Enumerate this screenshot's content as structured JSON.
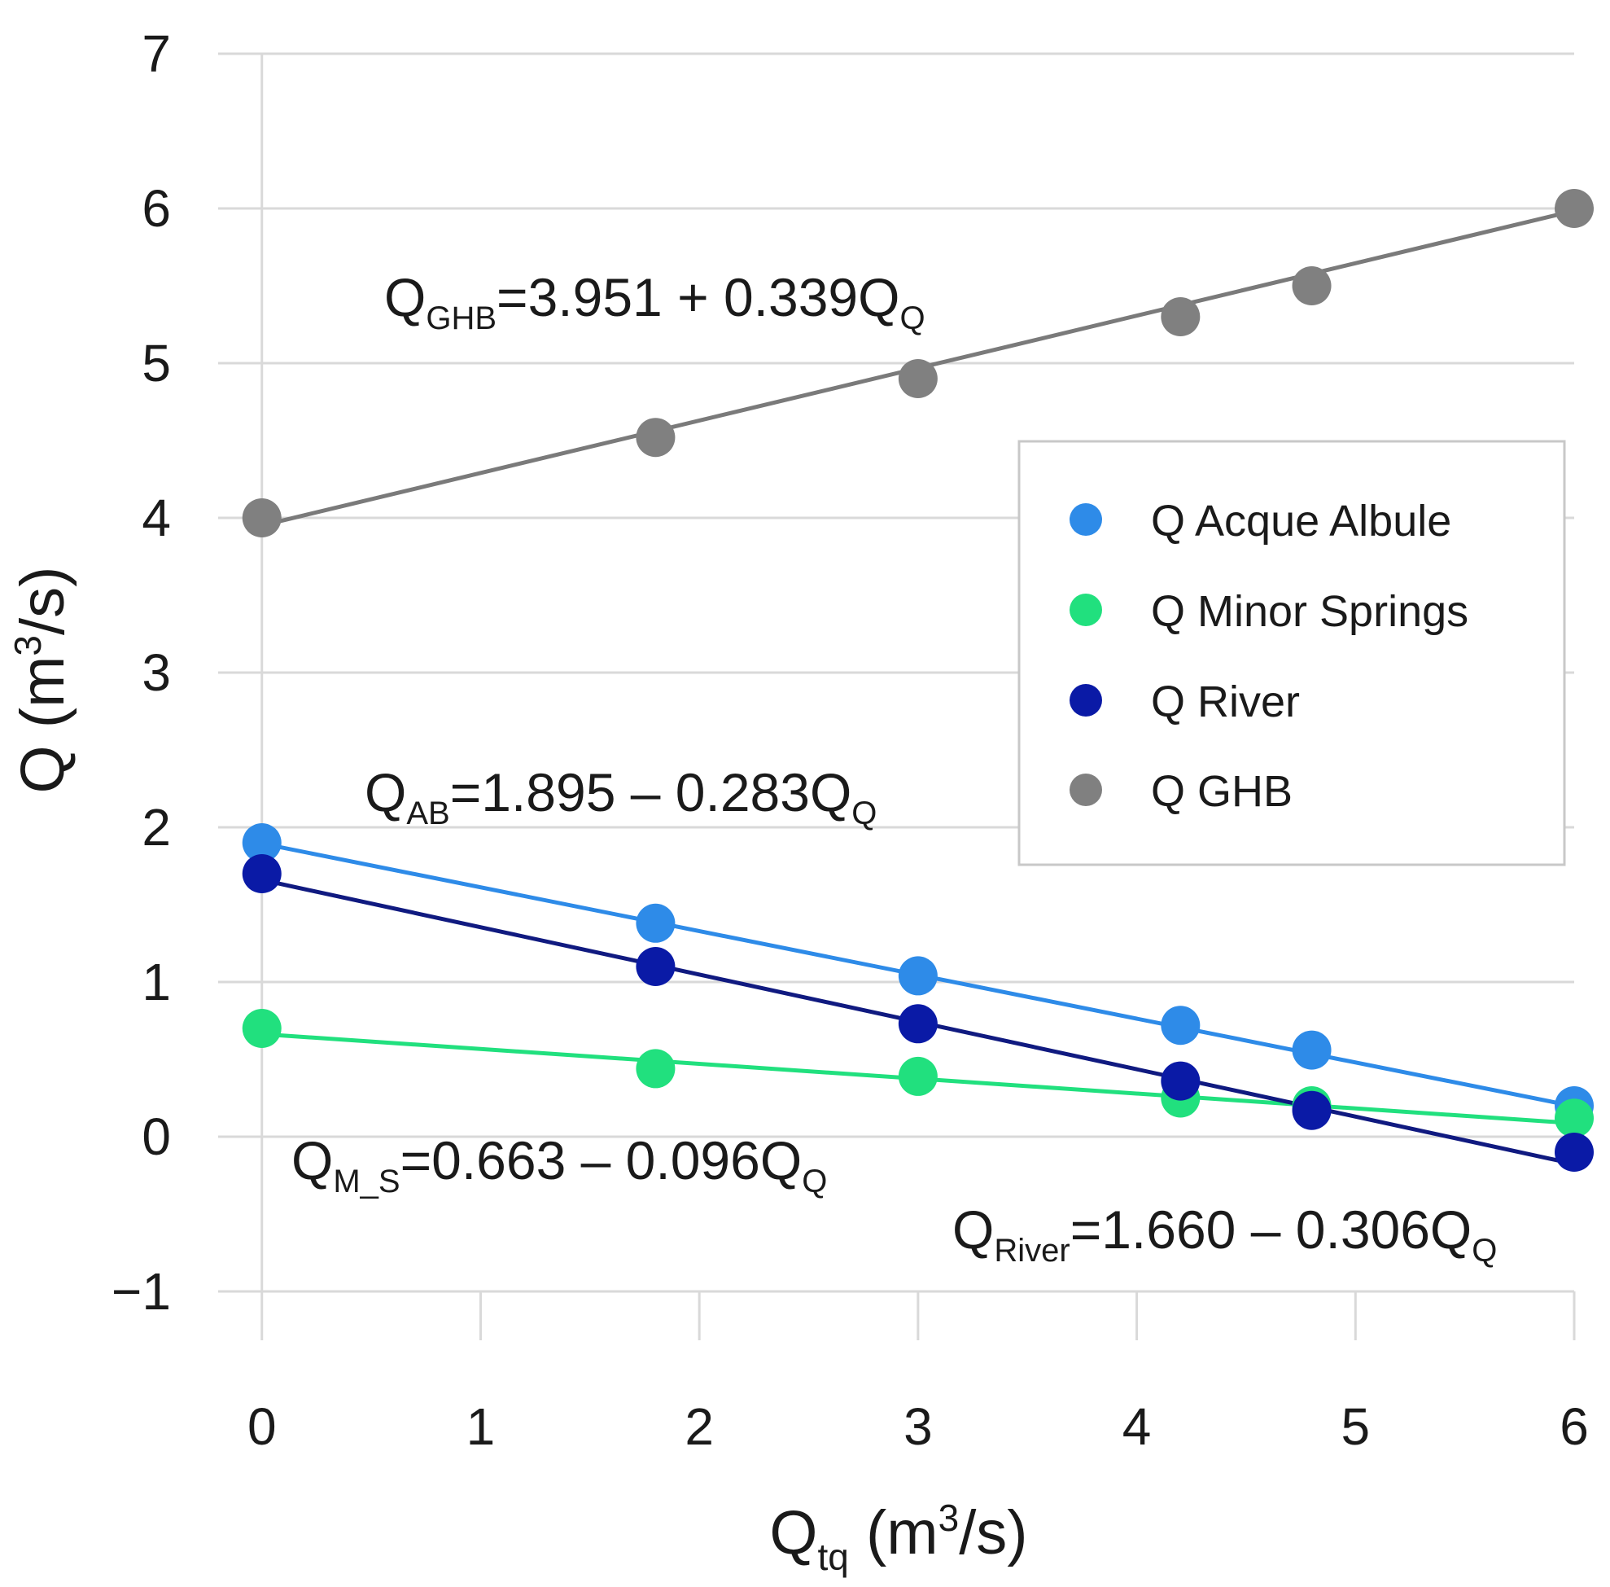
{
  "chart_data": {
    "type": "scatter",
    "title": "",
    "xlabel": {
      "main": "Q",
      "sub": "tq",
      "unit_open": " (m",
      "sup": "3",
      "unit_close": "/s)"
    },
    "ylabel": {
      "main": "Q (m",
      "sup": "3",
      "unit_close": "/s)"
    },
    "xlim": [
      -0.2,
      6.0
    ],
    "ylim": [
      -1.0,
      7.0
    ],
    "xticks": [
      0,
      1,
      2,
      3,
      4,
      5,
      6
    ],
    "xtick_labels": [
      "0",
      "1",
      "2",
      "3",
      "4",
      "5",
      "6"
    ],
    "yticks": [
      -1,
      0,
      1,
      2,
      3,
      4,
      5,
      6,
      7
    ],
    "ytick_labels": [
      "−1",
      "0",
      "1",
      "2",
      "3",
      "4",
      "5",
      "6",
      "7"
    ],
    "grid": true,
    "legend_position": "center-right",
    "series": [
      {
        "name": "Q Acque Albule",
        "color": "#2e8be8",
        "line_color": "#2e8be8",
        "x": [
          0,
          1.8,
          3.0,
          4.2,
          4.8,
          6.0
        ],
        "y": [
          1.9,
          1.38,
          1.04,
          0.72,
          0.56,
          0.2
        ],
        "fit": {
          "intercept": 1.895,
          "slope": -0.283
        }
      },
      {
        "name": "Q Minor Springs",
        "color": "#21e07e",
        "line_color": "#21e07e",
        "x": [
          0,
          1.8,
          3.0,
          4.2,
          4.8,
          6.0
        ],
        "y": [
          0.7,
          0.44,
          0.39,
          0.25,
          0.2,
          0.12
        ],
        "fit": {
          "intercept": 0.663,
          "slope": -0.096
        }
      },
      {
        "name": "Q River",
        "color": "#0a1aa6",
        "line_color": "#101a80",
        "x": [
          0,
          1.8,
          3.0,
          4.2,
          4.8,
          6.0
        ],
        "y": [
          1.7,
          1.1,
          0.73,
          0.36,
          0.17,
          -0.1
        ],
        "fit": {
          "intercept": 1.66,
          "slope": -0.306
        }
      },
      {
        "name": "Q GHB",
        "color": "#808080",
        "line_color": "#7a7a7a",
        "x": [
          0,
          1.8,
          3.0,
          4.2,
          4.8,
          6.0
        ],
        "y": [
          4.0,
          4.52,
          4.9,
          5.3,
          5.5,
          6.0
        ],
        "fit": {
          "intercept": 3.951,
          "slope": 0.339
        }
      }
    ],
    "annotations": [
      {
        "id": "ghb",
        "main": "Q",
        "sub": "GHB",
        "body": "=3.951 + 0.339Q",
        "tail_sub": "Q"
      },
      {
        "id": "ab",
        "main": "Q",
        "sub": "AB",
        "body": "=1.895 – 0.283Q",
        "tail_sub": "Q"
      },
      {
        "id": "ms",
        "main": "Q",
        "sub": "M_S",
        "body": "=0.663 – 0.096Q",
        "tail_sub": "Q"
      },
      {
        "id": "river",
        "main": "Q",
        "sub": "River",
        "body": "=1.660 – 0.306Q",
        "tail_sub": "Q"
      }
    ]
  }
}
